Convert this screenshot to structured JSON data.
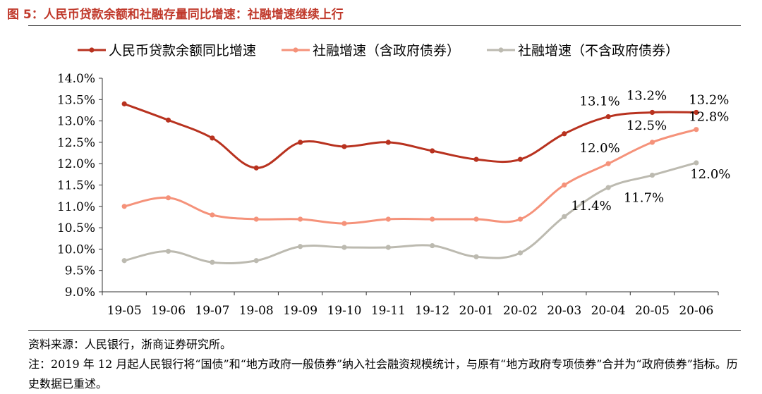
{
  "figure": {
    "title": "图 5：人民币贷款余额和社融存量同比增速：社融增速继续上行",
    "source": "资料来源：人民银行，浙商证券研究所。",
    "note": "注：2019 年 12 月起人民银行将“国债”和“地方政府一般债券”纳入社会融资规模统计，与原有“地方政府专项债券”合并为“政府债券”指标。历史数据已重述。"
  },
  "chart_data": {
    "type": "line",
    "categories": [
      "19-05",
      "19-06",
      "19-07",
      "19-08",
      "19-09",
      "19-10",
      "19-11",
      "19-12",
      "20-01",
      "20-02",
      "20-03",
      "20-04",
      "20-05",
      "20-06"
    ],
    "ylim": [
      9.0,
      14.0
    ],
    "yticks": [
      "9.0%",
      "9.5%",
      "10.0%",
      "10.5%",
      "11.0%",
      "11.5%",
      "12.0%",
      "12.5%",
      "13.0%",
      "13.5%",
      "14.0%"
    ],
    "ytick_values": [
      9.0,
      9.5,
      10.0,
      10.5,
      11.0,
      11.5,
      12.0,
      12.5,
      13.0,
      13.5,
      14.0
    ],
    "legend_position": "top",
    "series": [
      {
        "name": "人民币贷款余额同比增速",
        "color": "#b8321f",
        "values": [
          13.4,
          13.02,
          12.6,
          11.9,
          12.5,
          12.4,
          12.5,
          12.3,
          12.1,
          12.1,
          12.7,
          13.1,
          13.2,
          13.2
        ]
      },
      {
        "name": "社融增速（含政府债券）",
        "color": "#f5927a",
        "values": [
          11.0,
          11.2,
          10.8,
          10.7,
          10.7,
          10.6,
          10.7,
          10.7,
          10.7,
          10.7,
          11.5,
          12.0,
          12.5,
          12.8
        ]
      },
      {
        "name": "社融增速（不含政府债券）",
        "color": "#bcbab0",
        "values": [
          9.73,
          9.95,
          9.69,
          9.73,
          10.06,
          10.04,
          10.04,
          10.08,
          9.82,
          9.91,
          10.76,
          11.44,
          11.73,
          12.02
        ]
      }
    ],
    "annotations": [
      {
        "series": 0,
        "index": 11,
        "text": "13.1%",
        "pos": "above-left"
      },
      {
        "series": 0,
        "index": 12,
        "text": "13.2%",
        "pos": "above"
      },
      {
        "series": 0,
        "index": 13,
        "text": "13.2%",
        "pos": "above-right"
      },
      {
        "series": 1,
        "index": 11,
        "text": "12.0%",
        "pos": "above-left"
      },
      {
        "series": 1,
        "index": 12,
        "text": "12.5%",
        "pos": "above"
      },
      {
        "series": 1,
        "index": 13,
        "text": "12.8%",
        "pos": "above-right"
      },
      {
        "series": 2,
        "index": 11,
        "text": "11.4%",
        "pos": "below-left"
      },
      {
        "series": 2,
        "index": 12,
        "text": "11.7%",
        "pos": "below"
      },
      {
        "series": 2,
        "index": 13,
        "text": "12.0%",
        "pos": "below-right"
      }
    ]
  }
}
